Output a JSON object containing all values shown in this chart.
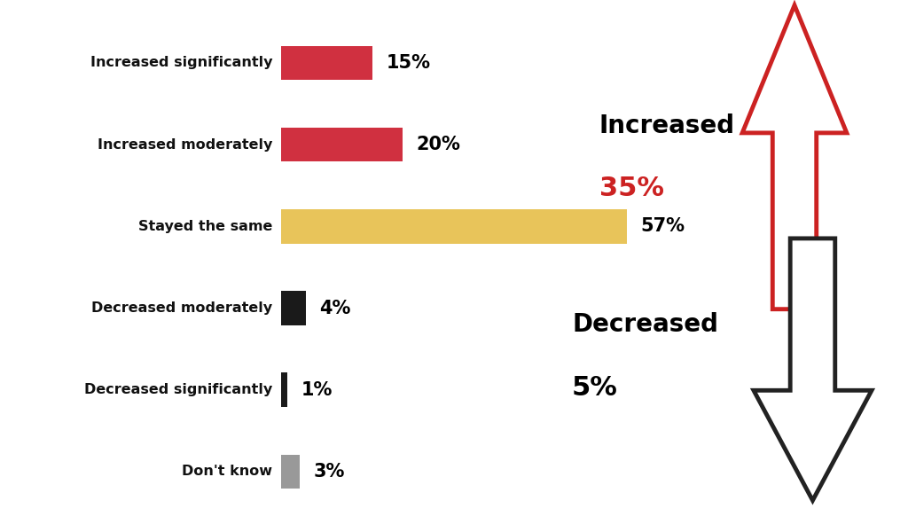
{
  "categories": [
    "Increased significantly",
    "Increased moderately",
    "Stayed the same",
    "Decreased moderately",
    "Decreased significantly",
    "Don't know"
  ],
  "values": [
    15,
    20,
    57,
    4,
    1,
    3
  ],
  "colors": [
    "#d03040",
    "#d03040",
    "#e8c45a",
    "#1a1a1a",
    "#1a1a1a",
    "#999999"
  ],
  "max_val": 57,
  "pct_labels": [
    "15%",
    "20%",
    "57%",
    "4%",
    "1%",
    "3%"
  ],
  "increased_label": "Increased",
  "increased_pct": "35%",
  "decreased_label": "Decreased",
  "decreased_pct": "5%",
  "arrow_up_color": "#cc2222",
  "arrow_down_color": "#222222",
  "bg_color": "#ffffff",
  "label_color": "#111111",
  "pct_color": "#cc2222",
  "bar_height": 0.55,
  "figsize": [
    10.24,
    5.91
  ],
  "dpi": 100
}
